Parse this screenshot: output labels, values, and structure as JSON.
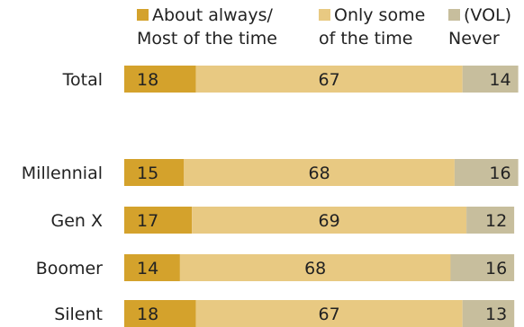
{
  "colors": {
    "about_always": "#D4A22C",
    "only_some": "#E8C982",
    "never": "#C7BE9D",
    "text": "#222222"
  },
  "legend": [
    {
      "line1": "About always/",
      "line2": "Most of the time",
      "color": "#D4A22C"
    },
    {
      "line1": "Only some",
      "line2": "of the time",
      "color": "#E8C982"
    },
    {
      "line1": "(VOL)",
      "line2": "Never",
      "color": "#C7BE9D"
    }
  ],
  "chart_data": {
    "type": "bar",
    "orientation": "horizontal",
    "stacked": true,
    "categories": [
      "Total",
      "Millennial",
      "Gen X",
      "Boomer",
      "Silent"
    ],
    "series": [
      {
        "name": "About always/Most of the time",
        "values": [
          18,
          15,
          17,
          14,
          18
        ]
      },
      {
        "name": "Only some of the time",
        "values": [
          67,
          68,
          69,
          68,
          67
        ]
      },
      {
        "name": "(VOL) Never",
        "values": [
          14,
          16,
          12,
          16,
          13
        ]
      }
    ],
    "title": "",
    "xlabel": "",
    "ylabel": "",
    "legend_position": "top"
  }
}
